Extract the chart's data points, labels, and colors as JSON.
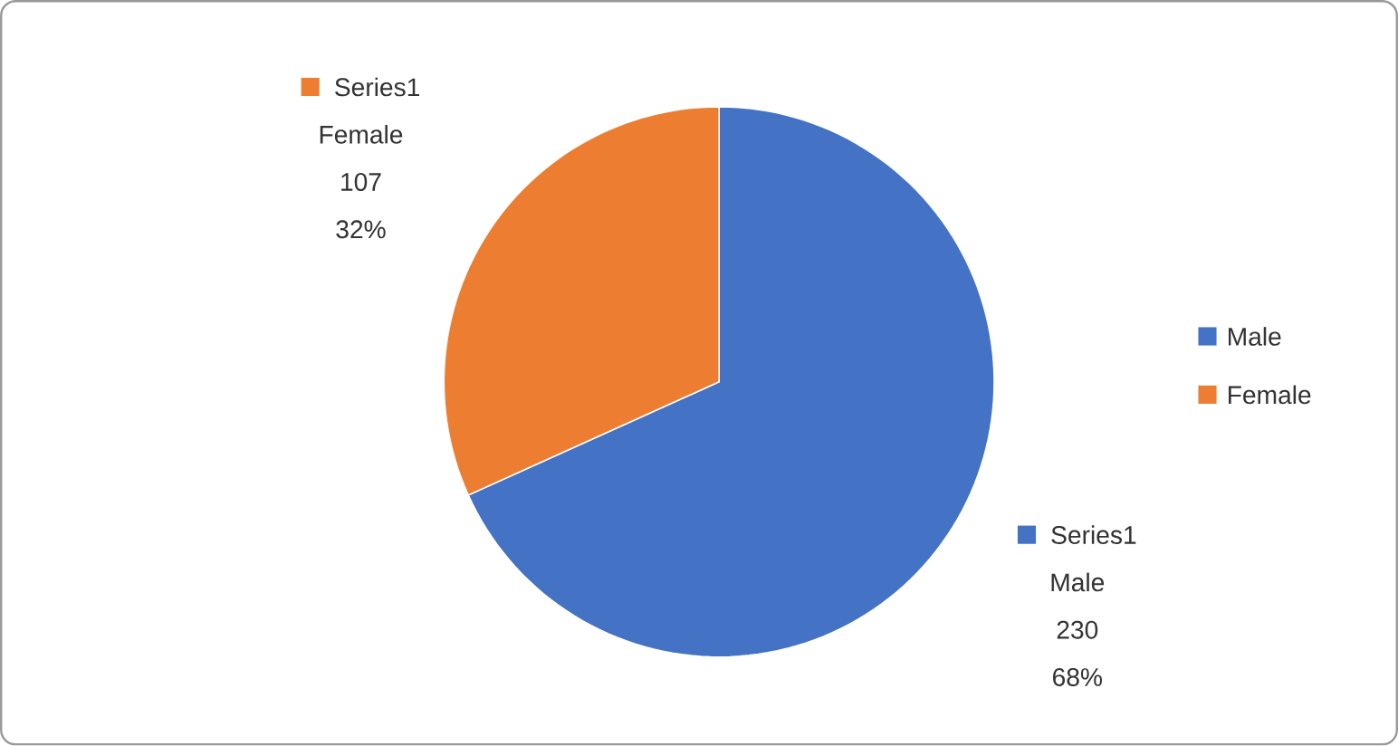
{
  "chart_data": {
    "type": "pie",
    "categories": [
      "Male",
      "Female"
    ],
    "series": [
      {
        "name": "Series1",
        "values": [
          230,
          107
        ]
      }
    ],
    "colors": [
      "#4472c4",
      "#ed7d31"
    ],
    "data_labels": true,
    "annotations": [
      {
        "text": "68%",
        "x": "Male"
      },
      {
        "text": "32%",
        "x": "Female"
      }
    ],
    "legend": "right"
  }
}
